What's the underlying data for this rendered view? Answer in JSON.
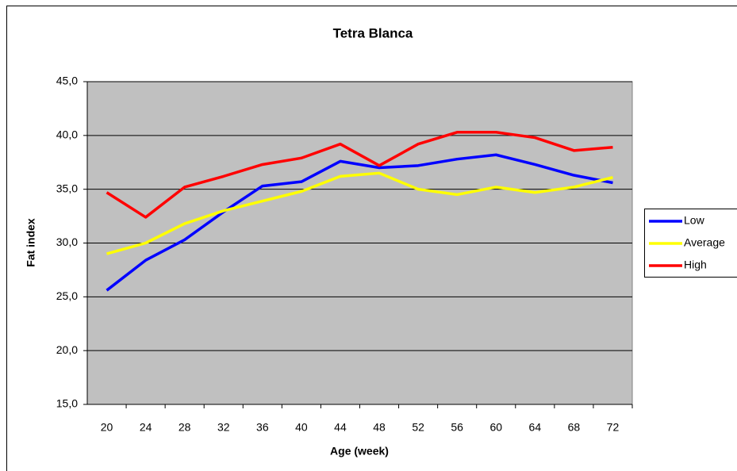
{
  "chart_data": {
    "type": "line",
    "title": "Tetra Blanca",
    "x_label": "Age (week)",
    "y_label": "Fat index",
    "categories": [
      "20",
      "24",
      "28",
      "32",
      "36",
      "40",
      "44",
      "48",
      "52",
      "56",
      "60",
      "64",
      "68",
      "72"
    ],
    "series": [
      {
        "name": "Low",
        "color": "#0000ff",
        "values": [
          25.6,
          28.4,
          30.3,
          32.9,
          35.3,
          35.7,
          37.6,
          37.0,
          37.2,
          37.8,
          38.2,
          37.3,
          36.3,
          35.6
        ]
      },
      {
        "name": "Average",
        "color": "#ffff00",
        "values": [
          29.0,
          30.0,
          31.8,
          33.0,
          33.9,
          34.8,
          36.2,
          36.5,
          35.0,
          34.5,
          35.2,
          34.7,
          35.2,
          36.1
        ]
      },
      {
        "name": "High",
        "color": "#ff0000",
        "values": [
          34.7,
          32.4,
          35.2,
          36.2,
          37.3,
          37.9,
          39.2,
          37.2,
          39.2,
          40.3,
          40.3,
          39.8,
          38.6,
          38.9
        ]
      }
    ],
    "ylim": [
      15,
      45
    ],
    "yticks": [
      {
        "value": 15,
        "label": "15,0"
      },
      {
        "value": 20,
        "label": "20,0"
      },
      {
        "value": 25,
        "label": "25,0"
      },
      {
        "value": 30,
        "label": "30,0"
      },
      {
        "value": 35,
        "label": "35,0"
      },
      {
        "value": 40,
        "label": "40,0"
      },
      {
        "value": 45,
        "label": "45,0"
      }
    ],
    "grid": true,
    "legend": "right",
    "plot_background": "#c0c0c0"
  }
}
